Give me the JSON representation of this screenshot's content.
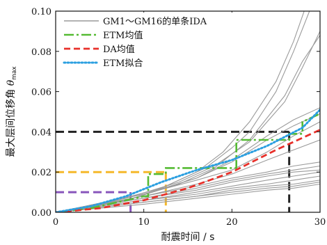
{
  "chart_data": {
    "type": "line",
    "xlabel": "耐震时间 / s",
    "ylabel": "最大层间位移角 θmax",
    "ylabel_main": "最大层间位移角 ",
    "ylabel_symbol": "θ",
    "ylabel_sub": "max",
    "xlim": [
      0,
      30
    ],
    "ylim": [
      0,
      0.1
    ],
    "xticks": [
      0,
      10,
      20,
      30
    ],
    "yticks": [
      0.0,
      0.02,
      0.04,
      0.06,
      0.08,
      0.1
    ],
    "xtick_labels": [
      "0",
      "10",
      "20",
      "30"
    ],
    "ytick_labels": [
      "0.00",
      "0.02",
      "0.04",
      "0.06",
      "0.08",
      "0.10"
    ],
    "grid": false,
    "legend_position": "top-left",
    "legend": [
      {
        "label": "GM1～GM16的单条IDA",
        "color": "#9a9a9a",
        "style": "solid"
      },
      {
        "label": "ETM均值",
        "color": "#55bb33",
        "style": "dashdot"
      },
      {
        "label": "DA均值",
        "color": "#e8302a",
        "style": "dashed"
      },
      {
        "label": "ETM拟合",
        "color": "#2b9fe0",
        "style": "dotted"
      }
    ],
    "series": [
      {
        "name": "GM1～GM16的单条IDA",
        "color": "#9a9a9a",
        "curves": [
          [
            [
              0,
              0
            ],
            [
              6,
              0.005
            ],
            [
              12,
              0.012
            ],
            [
              16,
              0.02
            ],
            [
              19,
              0.03
            ],
            [
              22,
              0.045
            ],
            [
              25,
              0.065
            ],
            [
              27,
              0.085
            ],
            [
              28.2,
              0.1
            ]
          ],
          [
            [
              0,
              0
            ],
            [
              6,
              0.005
            ],
            [
              12,
              0.012
            ],
            [
              17,
              0.022
            ],
            [
              20,
              0.032
            ],
            [
              22,
              0.04
            ],
            [
              25,
              0.06
            ],
            [
              27,
              0.08
            ],
            [
              28.8,
              0.1
            ]
          ],
          [
            [
              0,
              0
            ],
            [
              8,
              0.007
            ],
            [
              14,
              0.015
            ],
            [
              18,
              0.023
            ],
            [
              22,
              0.035
            ],
            [
              26,
              0.055
            ],
            [
              28,
              0.072
            ],
            [
              30,
              0.09
            ]
          ],
          [
            [
              0,
              0
            ],
            [
              8,
              0.006
            ],
            [
              14,
              0.014
            ],
            [
              18,
              0.022
            ],
            [
              22,
              0.036
            ],
            [
              26,
              0.058
            ],
            [
              28,
              0.075
            ],
            [
              30,
              0.088
            ]
          ],
          [
            [
              0,
              0
            ],
            [
              10,
              0.009
            ],
            [
              16,
              0.017
            ],
            [
              20,
              0.026
            ],
            [
              24,
              0.038
            ],
            [
              27,
              0.046
            ],
            [
              30,
              0.052
            ]
          ],
          [
            [
              0,
              0
            ],
            [
              10,
              0.009
            ],
            [
              16,
              0.017
            ],
            [
              20,
              0.025
            ],
            [
              24,
              0.036
            ],
            [
              27,
              0.043
            ],
            [
              30,
              0.049
            ]
          ],
          [
            [
              0,
              0
            ],
            [
              10,
              0.009
            ],
            [
              16,
              0.016
            ],
            [
              20,
              0.021
            ],
            [
              24,
              0.03
            ],
            [
              27,
              0.038
            ],
            [
              30,
              0.045
            ]
          ],
          [
            [
              0,
              0
            ],
            [
              10,
              0.008
            ],
            [
              16,
              0.014
            ],
            [
              20,
              0.019
            ],
            [
              24,
              0.026
            ],
            [
              27,
              0.031
            ],
            [
              30,
              0.036
            ]
          ],
          [
            [
              0,
              0
            ],
            [
              10,
              0.008
            ],
            [
              16,
              0.013
            ],
            [
              20,
              0.017
            ],
            [
              24,
              0.02
            ],
            [
              27,
              0.023
            ],
            [
              30,
              0.025
            ]
          ],
          [
            [
              0,
              0
            ],
            [
              10,
              0.007
            ],
            [
              16,
              0.012
            ],
            [
              20,
              0.016
            ],
            [
              24,
              0.019
            ],
            [
              27,
              0.021
            ],
            [
              30,
              0.023
            ]
          ],
          [
            [
              0,
              0
            ],
            [
              10,
              0.007
            ],
            [
              16,
              0.011
            ],
            [
              20,
              0.015
            ],
            [
              24,
              0.018
            ],
            [
              27,
              0.02
            ],
            [
              30,
              0.021
            ]
          ],
          [
            [
              0,
              0
            ],
            [
              10,
              0.006
            ],
            [
              16,
              0.01
            ],
            [
              20,
              0.013
            ],
            [
              24,
              0.016
            ],
            [
              27,
              0.018
            ],
            [
              30,
              0.02
            ]
          ],
          [
            [
              0,
              0
            ],
            [
              10,
              0.006
            ],
            [
              16,
              0.009
            ],
            [
              20,
              0.012
            ],
            [
              24,
              0.014
            ],
            [
              27,
              0.016
            ],
            [
              30,
              0.018
            ]
          ],
          [
            [
              0,
              0
            ],
            [
              10,
              0.005
            ],
            [
              16,
              0.008
            ],
            [
              20,
              0.011
            ],
            [
              24,
              0.013
            ],
            [
              27,
              0.014
            ],
            [
              30,
              0.016
            ]
          ],
          [
            [
              0,
              0
            ],
            [
              10,
              0.005
            ],
            [
              16,
              0.008
            ],
            [
              20,
              0.01
            ],
            [
              24,
              0.012
            ],
            [
              27,
              0.013
            ],
            [
              30,
              0.015
            ]
          ],
          [
            [
              0,
              0
            ],
            [
              10,
              0.004
            ],
            [
              16,
              0.007
            ],
            [
              20,
              0.009
            ],
            [
              24,
              0.011
            ],
            [
              27,
              0.012
            ],
            [
              30,
              0.014
            ]
          ]
        ]
      },
      {
        "name": "ETM均值",
        "color": "#55bb33",
        "style": "dashdot",
        "points": [
          [
            0,
            0
          ],
          [
            2,
            0.001
          ],
          [
            4,
            0.002
          ],
          [
            6,
            0.004
          ],
          [
            8,
            0.006
          ],
          [
            10,
            0.008
          ],
          [
            10.5,
            0.008
          ],
          [
            10.5,
            0.019
          ],
          [
            12.5,
            0.019
          ],
          [
            12.5,
            0.022
          ],
          [
            16.5,
            0.022
          ],
          [
            16.5,
            0.022
          ],
          [
            20.5,
            0.022
          ],
          [
            20.5,
            0.036
          ],
          [
            26.5,
            0.036
          ],
          [
            26.5,
            0.039
          ],
          [
            28,
            0.039
          ],
          [
            28,
            0.045
          ],
          [
            30,
            0.049
          ]
        ]
      },
      {
        "name": "DA均值",
        "color": "#e8302a",
        "style": "dashed",
        "points": [
          [
            0,
            0
          ],
          [
            5,
            0.002
          ],
          [
            10,
            0.006
          ],
          [
            15,
            0.012
          ],
          [
            20,
            0.02
          ],
          [
            25,
            0.031
          ],
          [
            30,
            0.041
          ]
        ]
      },
      {
        "name": "ETM拟合",
        "color": "#2b9fe0",
        "style": "dotted",
        "points": [
          [
            0,
            0
          ],
          [
            4,
            0.003
          ],
          [
            8,
            0.008
          ],
          [
            12,
            0.015
          ],
          [
            16,
            0.021
          ],
          [
            20,
            0.026
          ],
          [
            24,
            0.033
          ],
          [
            28,
            0.042
          ],
          [
            30,
            0.051
          ]
        ]
      }
    ],
    "reference_lines": [
      {
        "color": "#8855bb",
        "y": 0.01,
        "x": 8.5
      },
      {
        "color": "#f5b82a",
        "y": 0.02,
        "x": 12.5
      },
      {
        "color": "#222222",
        "y": 0.04,
        "x": 26.5
      }
    ]
  }
}
